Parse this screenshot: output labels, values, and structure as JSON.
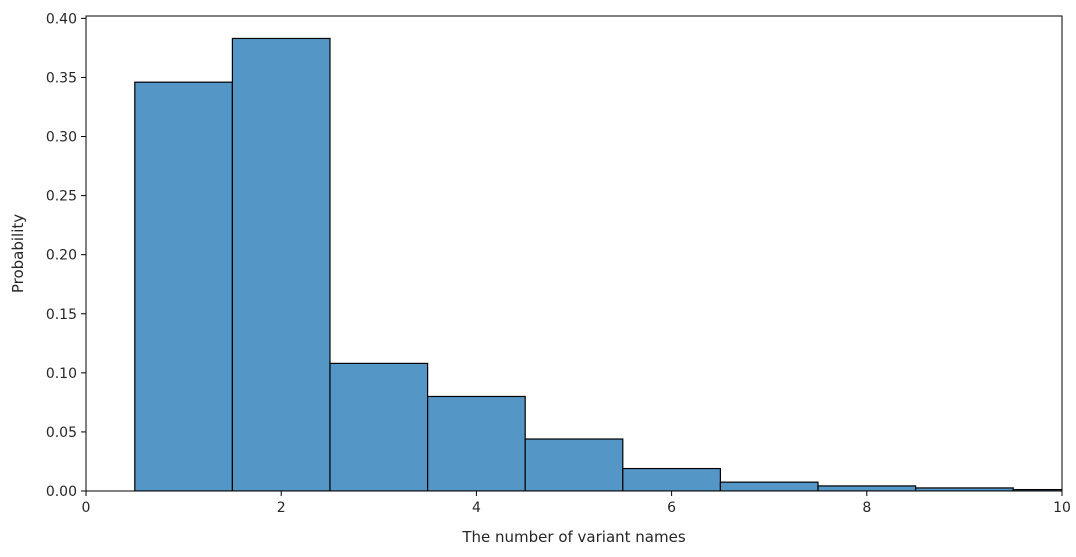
{
  "chart_data": {
    "type": "bar",
    "subtype": "histogram",
    "xlabel": "The number of variant names",
    "ylabel": "Probability",
    "xlim": [
      0,
      10
    ],
    "ylim": [
      0,
      0.402
    ],
    "bin_width": 1,
    "bins": [
      {
        "center": 1,
        "value": 0.346
      },
      {
        "center": 2,
        "value": 0.383
      },
      {
        "center": 3,
        "value": 0.108
      },
      {
        "center": 4,
        "value": 0.08
      },
      {
        "center": 5,
        "value": 0.044
      },
      {
        "center": 6,
        "value": 0.019
      },
      {
        "center": 7,
        "value": 0.0075
      },
      {
        "center": 8,
        "value": 0.0043
      },
      {
        "center": 9,
        "value": 0.0026
      },
      {
        "center": 10,
        "value": 0.0012
      }
    ],
    "xticks": [
      {
        "value": 0,
        "label": "0"
      },
      {
        "value": 2,
        "label": "2"
      },
      {
        "value": 4,
        "label": "4"
      },
      {
        "value": 6,
        "label": "6"
      },
      {
        "value": 8,
        "label": "8"
      },
      {
        "value": 10,
        "label": "10"
      }
    ],
    "yticks": [
      {
        "value": 0.0,
        "label": "0.00"
      },
      {
        "value": 0.05,
        "label": "0.05"
      },
      {
        "value": 0.1,
        "label": "0.10"
      },
      {
        "value": 0.15,
        "label": "0.15"
      },
      {
        "value": 0.2,
        "label": "0.20"
      },
      {
        "value": 0.25,
        "label": "0.25"
      },
      {
        "value": 0.3,
        "label": "0.30"
      },
      {
        "value": 0.35,
        "label": "0.35"
      },
      {
        "value": 0.4,
        "label": "0.40"
      }
    ],
    "grid": false,
    "colors": {
      "bar_fill": "#5497c6",
      "bar_edge": "#000000",
      "axes": "#000000"
    }
  }
}
